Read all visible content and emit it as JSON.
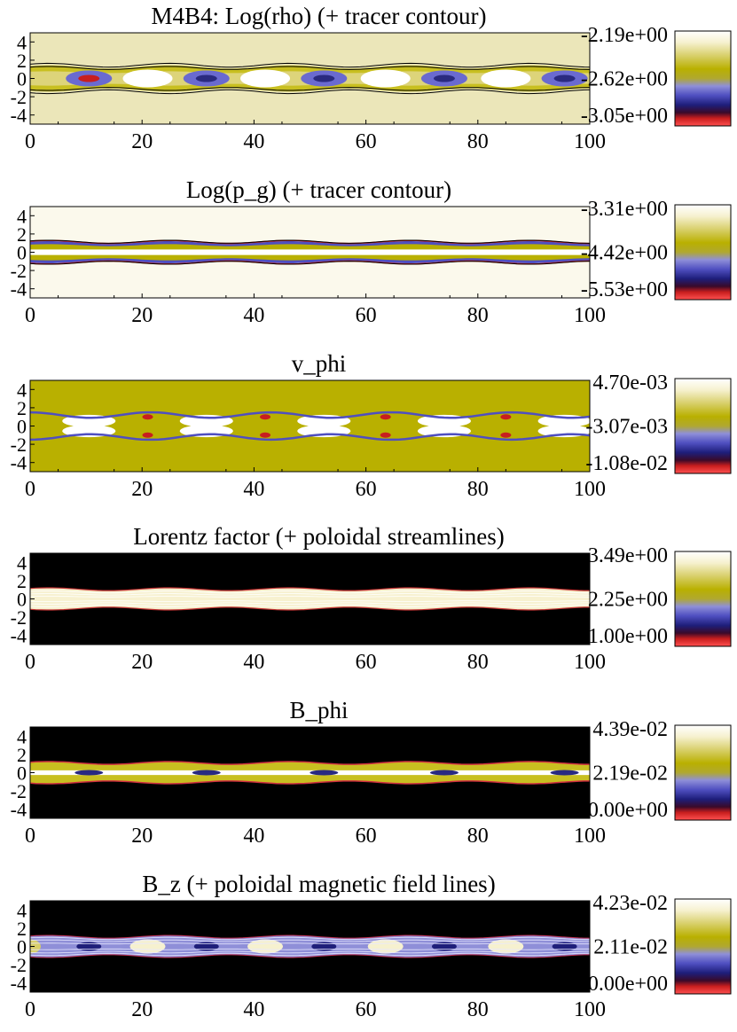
{
  "chart_data": [
    {
      "type": "heatmap",
      "title": "M4B4: Log(rho) (+ tracer contour)",
      "colorbar_labels": [
        "-2.19e+00",
        "-2.62e+00",
        "-3.05e+00"
      ],
      "xticks": [
        0,
        20,
        40,
        60,
        80,
        100
      ],
      "yticks": [
        4,
        2,
        0,
        -2,
        -4
      ],
      "xlim": [
        0,
        100
      ],
      "ylim": [
        -5,
        5
      ],
      "background": "#ebe6b9",
      "pattern": "density",
      "overlay": "tracer-contour"
    },
    {
      "type": "heatmap",
      "title": "Log(p_g) (+ tracer contour)",
      "colorbar_labels": [
        "-3.31e+00",
        "-4.42e+00",
        "-5.53e+00"
      ],
      "xticks": [
        0,
        20,
        40,
        60,
        80,
        100
      ],
      "yticks": [
        4,
        2,
        0,
        -2,
        -4
      ],
      "xlim": [
        0,
        100
      ],
      "ylim": [
        -5,
        5
      ],
      "background": "#fbf9ec",
      "pattern": "pressure",
      "overlay": "tracer-contour"
    },
    {
      "type": "heatmap",
      "title": "v_phi",
      "colorbar_labels": [
        "4.70e-03",
        "-3.07e-03",
        "-1.08e-02"
      ],
      "xticks": [
        0,
        20,
        40,
        60,
        80,
        100
      ],
      "yticks": [
        4,
        2,
        0,
        -2,
        -4
      ],
      "xlim": [
        0,
        100
      ],
      "ylim": [
        -5,
        5
      ],
      "background": "#b9b000",
      "pattern": "velocity",
      "overlay": "none"
    },
    {
      "type": "heatmap",
      "title": "Lorentz factor (+ poloidal streamlines)",
      "colorbar_labels": [
        "3.49e+00",
        "2.25e+00",
        "1.00e+00"
      ],
      "xticks": [
        0,
        20,
        40,
        60,
        80,
        100
      ],
      "yticks": [
        4,
        2,
        0,
        -2,
        -4
      ],
      "xlim": [
        0,
        100
      ],
      "ylim": [
        -5,
        5
      ],
      "background": "#000000",
      "pattern": "lorentz",
      "overlay": "streamlines"
    },
    {
      "type": "heatmap",
      "title": "B_phi",
      "colorbar_labels": [
        "4.39e-02",
        "2.19e-02",
        "0.00e+00"
      ],
      "xticks": [
        0,
        20,
        40,
        60,
        80,
        100
      ],
      "yticks": [
        4,
        2,
        0,
        -2,
        -4
      ],
      "xlim": [
        0,
        100
      ],
      "ylim": [
        -5,
        5
      ],
      "background": "#000000",
      "pattern": "bphi",
      "overlay": "none"
    },
    {
      "type": "heatmap",
      "title": "B_z (+ poloidal magnetic field lines)",
      "colorbar_labels": [
        "4.23e-02",
        "2.11e-02",
        "0.00e+00"
      ],
      "xticks": [
        0,
        20,
        40,
        60,
        80,
        100
      ],
      "yticks": [
        4,
        2,
        0,
        -2,
        -4
      ],
      "xlim": [
        0,
        100
      ],
      "ylim": [
        -5,
        5
      ],
      "background": "#000000",
      "pattern": "bz",
      "overlay": "field-lines"
    }
  ],
  "colormap": [
    "#ffffff",
    "#f4efc6",
    "#d8cf6a",
    "#b9b000",
    "#8f8fd8",
    "#4f4fc0",
    "#1e1e7a",
    "#3a0a2a",
    "#c81e1e",
    "#e04040"
  ]
}
